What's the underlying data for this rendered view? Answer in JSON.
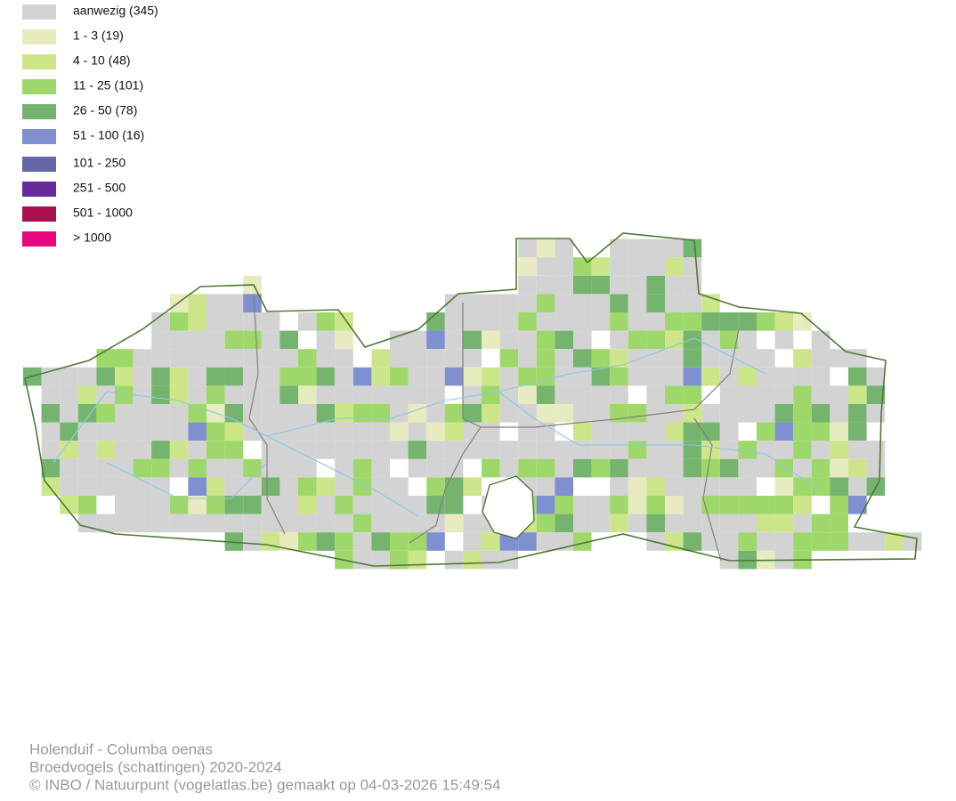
{
  "legend": [
    {
      "label": "aanwezig (345)",
      "color": "#d3d3d3"
    },
    {
      "label": "1 - 3 (19)",
      "color": "#e8ebc0"
    },
    {
      "label": "4 - 10 (48)",
      "color": "#cde68a"
    },
    {
      "label": "11 - 25 (101)",
      "color": "#9fd86a"
    },
    {
      "label": "26 - 50 (78)",
      "color": "#74b46e"
    },
    {
      "label": "51 - 100 (16)",
      "color": "#7f8fd0"
    },
    {
      "label": "101 - 250",
      "color": "#6466a8"
    },
    {
      "label": "251 - 500",
      "color": "#662a9a"
    },
    {
      "label": "501 - 1000",
      "color": "#a8104f"
    },
    {
      "label": "> 1000",
      "color": "#e8067f"
    }
  ],
  "footer": {
    "line1": "Holenduif - Columba oenas",
    "line2": "Broedvogels (schattingen) 2020-2024",
    "line3": "© INBO / Natuurpunt (vogelatlas.be) gemaakt op 04-03-2026 15:49:54"
  }
}
